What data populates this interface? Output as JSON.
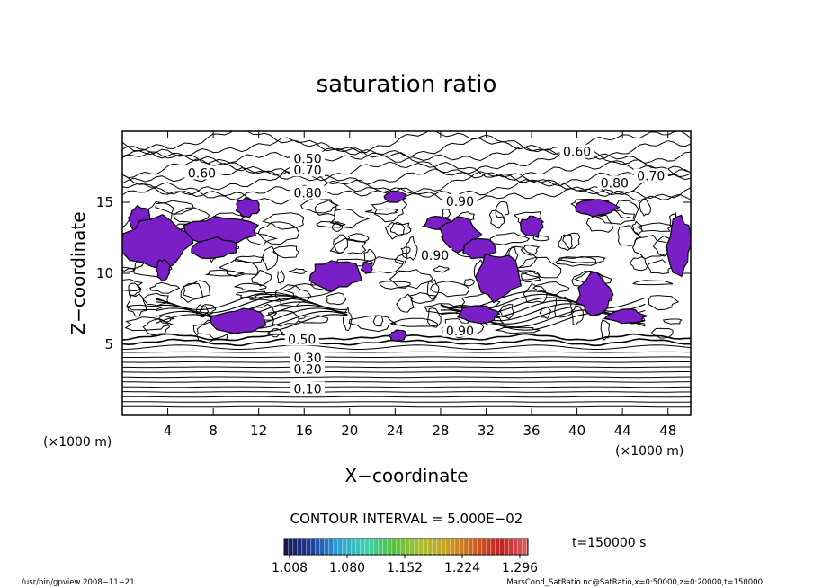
{
  "chart_data": {
    "type": "heatmap",
    "title": "saturation ratio",
    "xlabel": "X−coordinate",
    "ylabel": "Z−coordinate",
    "x_unit": "(×1000 m)",
    "y_unit": "(×1000 m)",
    "xlim": [
      0,
      50
    ],
    "ylim": [
      0,
      20
    ],
    "x_ticks": [
      4,
      8,
      12,
      16,
      20,
      24,
      28,
      32,
      36,
      40,
      44,
      48
    ],
    "y_ticks": [
      5,
      10,
      15
    ],
    "contour_interval": "CONTOUR INTERVAL = 5.000E−02",
    "time_label": "t=150000 s",
    "colorbar_ticks": [
      "1.008",
      "1.080",
      "1.152",
      "1.224",
      "1.296"
    ],
    "colors": {
      "supersaturated": "#7a1fc8",
      "colorbar": [
        "#141450",
        "#1e3a9a",
        "#2aa0d8",
        "#3ad0b0",
        "#50c040",
        "#a8c030",
        "#c8a020",
        "#d06020",
        "#c02020",
        "#e06060"
      ]
    },
    "contour_labels": [
      {
        "text": "0.10",
        "x": 16.3,
        "z": 1.8
      },
      {
        "text": "0.20",
        "x": 16.3,
        "z": 3.2
      },
      {
        "text": "0.30",
        "x": 16.3,
        "z": 4.0
      },
      {
        "text": "0.50",
        "x": 15.8,
        "z": 5.3
      },
      {
        "text": "0.90",
        "x": 29.7,
        "z": 5.9
      },
      {
        "text": "0.60",
        "x": 7.0,
        "z": 17.0
      },
      {
        "text": "0.50",
        "x": 16.3,
        "z": 18.0
      },
      {
        "text": "0.70",
        "x": 16.3,
        "z": 17.2
      },
      {
        "text": "0.80",
        "x": 16.3,
        "z": 15.6
      },
      {
        "text": "0.90",
        "x": 29.7,
        "z": 15.0
      },
      {
        "text": "0.90",
        "x": 27.5,
        "z": 11.2
      },
      {
        "text": "0.60",
        "x": 40.0,
        "z": 18.5
      },
      {
        "text": "0.80",
        "x": 43.3,
        "z": 16.3
      },
      {
        "text": "0.70",
        "x": 46.5,
        "z": 16.8
      }
    ],
    "supersaturated_regions": [
      {
        "x": [
          0.5,
          2.5
        ],
        "z": [
          13.0,
          14.8
        ]
      },
      {
        "x": [
          0.0,
          6.0
        ],
        "z": [
          10.3,
          14.0
        ]
      },
      {
        "x": [
          3.0,
          4.2
        ],
        "z": [
          9.5,
          11.0
        ]
      },
      {
        "x": [
          5.5,
          11.8
        ],
        "z": [
          12.0,
          14.0
        ]
      },
      {
        "x": [
          6.0,
          10.0
        ],
        "z": [
          11.0,
          12.5
        ]
      },
      {
        "x": [
          10.0,
          12.0
        ],
        "z": [
          14.0,
          15.3
        ]
      },
      {
        "x": [
          8.0,
          12.5
        ],
        "z": [
          5.8,
          7.5
        ]
      },
      {
        "x": [
          16.5,
          21.0
        ],
        "z": [
          8.8,
          11.0
        ]
      },
      {
        "x": [
          21.0,
          22.0
        ],
        "z": [
          10.0,
          10.8
        ]
      },
      {
        "x": [
          23.0,
          25.0
        ],
        "z": [
          15.0,
          15.8
        ]
      },
      {
        "x": [
          23.5,
          25.0
        ],
        "z": [
          5.2,
          6.0
        ]
      },
      {
        "x": [
          26.5,
          29.0
        ],
        "z": [
          13.0,
          14.0
        ]
      },
      {
        "x": [
          28.0,
          31.5
        ],
        "z": [
          11.5,
          14.0
        ]
      },
      {
        "x": [
          30.0,
          33.0
        ],
        "z": [
          11.0,
          12.5
        ]
      },
      {
        "x": [
          31.0,
          35.0
        ],
        "z": [
          8.0,
          11.5
        ]
      },
      {
        "x": [
          35.0,
          37.0
        ],
        "z": [
          12.5,
          14.0
        ]
      },
      {
        "x": [
          29.5,
          33.0
        ],
        "z": [
          6.5,
          7.8
        ]
      },
      {
        "x": [
          40.0,
          43.0
        ],
        "z": [
          7.0,
          10.0
        ]
      },
      {
        "x": [
          40.0,
          43.5
        ],
        "z": [
          14.0,
          15.3
        ]
      },
      {
        "x": [
          42.5,
          46.0
        ],
        "z": [
          6.5,
          7.5
        ]
      },
      {
        "x": [
          48.0,
          50.0
        ],
        "z": [
          10.0,
          14.0
        ]
      }
    ]
  },
  "footer": {
    "left": "/usr/bin/gpview   2008−11−21",
    "right": "MarsCond_SatRatio.nc@SatRatio,x=0:50000,z=0:20000,t=150000"
  }
}
